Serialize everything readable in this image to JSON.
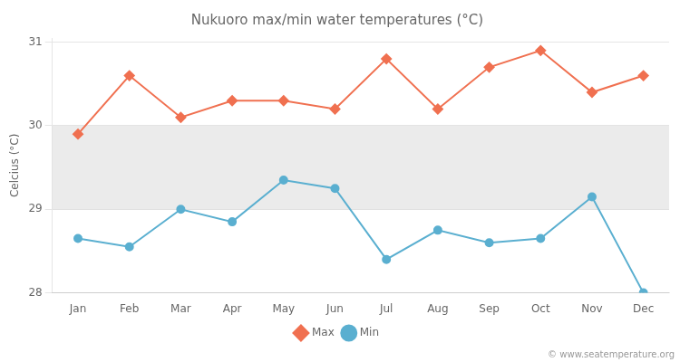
{
  "chart_data": {
    "type": "line",
    "title": "Nukuoro max/min water temperatures (°C)",
    "ylabel": "Celcius (°C)",
    "categories": [
      "Jan",
      "Feb",
      "Mar",
      "Apr",
      "May",
      "Jun",
      "Jul",
      "Aug",
      "Sep",
      "Oct",
      "Nov",
      "Dec"
    ],
    "series": [
      {
        "name": "Max",
        "color": "#f07050",
        "marker": "diamond",
        "values": [
          29.9,
          30.6,
          30.1,
          30.3,
          30.3,
          30.2,
          30.8,
          30.2,
          30.7,
          30.9,
          30.4,
          30.6
        ]
      },
      {
        "name": "Min",
        "color": "#5aafd0",
        "marker": "circle",
        "values": [
          28.65,
          28.55,
          29.0,
          28.85,
          29.35,
          29.25,
          28.4,
          28.75,
          28.6,
          28.65,
          29.15,
          28.0
        ]
      }
    ],
    "ylim": [
      28,
      31.05
    ],
    "yticks": [
      28,
      29,
      30,
      31
    ],
    "grid": true,
    "legend": "bottom",
    "bands": [
      {
        "from": 29.0,
        "to": 30.0,
        "color": "#ebebeb"
      }
    ],
    "annotations": [
      "© www.seatemperature.org"
    ]
  }
}
